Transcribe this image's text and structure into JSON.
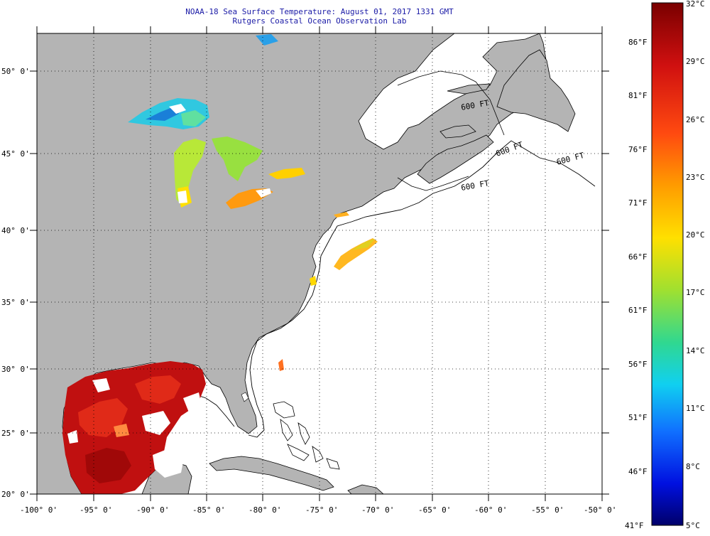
{
  "title": "NOAA-18 Sea Surface Temperature:  August 01, 2017 1331 GMT",
  "subtitle": "Rutgers Coastal Ocean Observation Lab",
  "map": {
    "lon_labels": [
      "-100° 0'",
      "-95° 0'",
      "-90° 0'",
      "-85° 0'",
      "-80° 0'",
      "-75° 0'",
      "-70° 0'",
      "-65° 0'",
      "-60° 0'",
      "-55° 0'",
      "-50° 0'"
    ],
    "lat_labels": [
      "20° 0'",
      "25° 0'",
      "30° 0'",
      "35° 0'",
      "40° 0'",
      "45° 0'",
      "50° 0'"
    ],
    "contour_labels": [
      "600 FT",
      "600 FT",
      "600 FT",
      "600 FT"
    ],
    "land_color": "#b4b4b4",
    "ocean_color": "#ffffff"
  },
  "colorbar": {
    "celsius": [
      "32°C",
      "29°C",
      "26°C",
      "23°C",
      "20°C",
      "17°C",
      "14°C",
      "11°C",
      "8°C",
      "5°C"
    ],
    "fahrenheit": [
      "86°F",
      "81°F",
      "76°F",
      "71°F",
      "66°F",
      "61°F",
      "56°F",
      "51°F",
      "46°F",
      "41°F"
    ],
    "colors": [
      "#8b0000",
      "#e01010",
      "#ff6a00",
      "#ffcc00",
      "#9ee030",
      "#30e0c0",
      "#18a0ff",
      "#1040ff",
      "#0000d0",
      "#000080"
    ]
  }
}
